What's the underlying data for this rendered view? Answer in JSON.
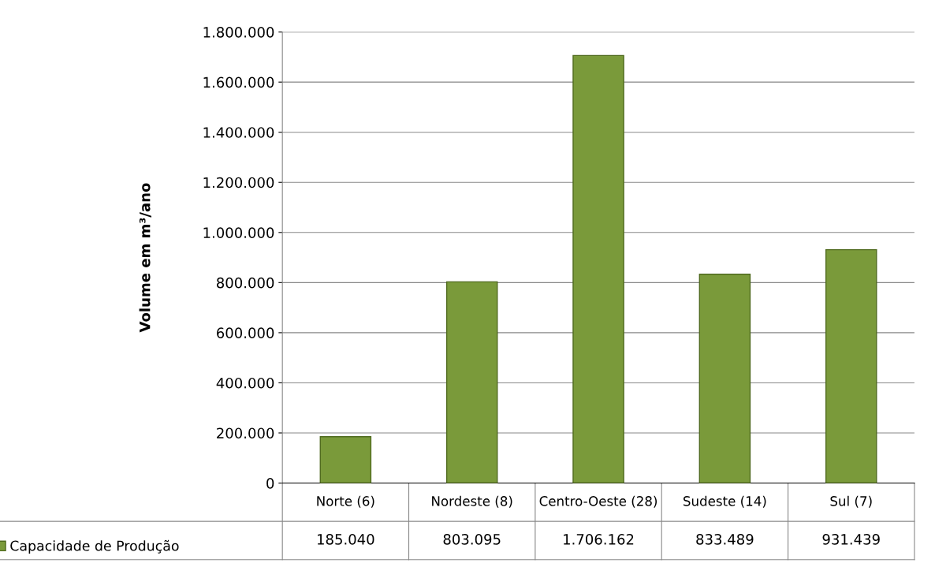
{
  "chart_data": {
    "type": "bar",
    "ylabel": "Volume em m³/ano",
    "categories": [
      "Norte (6)",
      "Nordeste (8)",
      "Centro-Oeste (28)",
      "Sudeste (14)",
      "Sul (7)"
    ],
    "series": [
      {
        "name": "Capacidade de Produção",
        "color": "#7a9a3a",
        "values": [
          185040,
          803095,
          1706162,
          833489,
          931439
        ],
        "value_labels": [
          "185.040",
          "803.095",
          "1.706.162",
          "833.489",
          "931.439"
        ]
      }
    ],
    "ylim": [
      0,
      1800000
    ],
    "yticks": [
      0,
      {
        "value": 200000,
        "label": "200.000"
      },
      {
        "value": 400000,
        "label": "400.000"
      },
      {
        "value": 600000,
        "label": "600.000"
      },
      {
        "value": 800000,
        "label": "800.000"
      },
      {
        "value": 1000000,
        "label": "1.000.000"
      },
      {
        "value": 1200000,
        "label": "1.200.000"
      },
      {
        "value": 1400000,
        "label": "1.400.000"
      },
      {
        "value": 1600000,
        "label": "1.600.000"
      },
      {
        "value": 1800000,
        "label": "1.800.000"
      }
    ],
    "grid": "y",
    "legend": "bottom left"
  }
}
